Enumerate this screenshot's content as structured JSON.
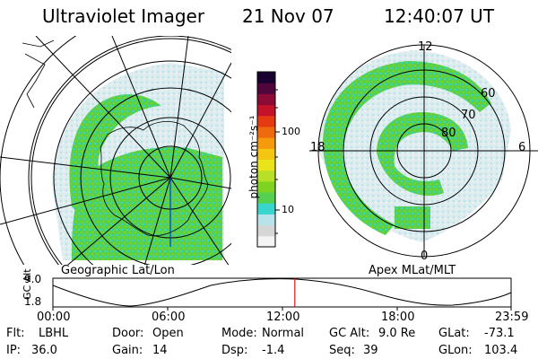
{
  "header": {
    "instrument": "Ultraviolet Imager",
    "date": "21 Nov 07",
    "time": "12:40:07 UT"
  },
  "colorbar": {
    "unit_label": "photon cm⁻²s⁻¹",
    "ticks": [
      "100",
      "10"
    ],
    "colors": [
      "#f4f4f4",
      "#d6d6d6",
      "#b9e3ea",
      "#39d6cf",
      "#55d050",
      "#7ed321",
      "#b8e028",
      "#e9e51a",
      "#f5c611",
      "#f49a0c",
      "#ef6a0e",
      "#e53a12",
      "#c4122a",
      "#8c0a36",
      "#50063a",
      "#1a0030"
    ]
  },
  "left_map": {
    "caption": "Geographic Lat/Lon"
  },
  "right_map": {
    "caption": "Apex MLat/MLT",
    "mlt_labels": {
      "top": "12",
      "left": "18",
      "right": "6",
      "bottom": "0"
    },
    "lat_labels": [
      "60",
      "70",
      "80"
    ]
  },
  "altitude_plot": {
    "y_label": "GC Alt",
    "y_ticks": [
      "9.0",
      "1.8"
    ],
    "x_ticks": [
      "00:00",
      "06:00",
      "12:00",
      "18:00",
      "23:59"
    ],
    "current_time_fraction": 0.528,
    "marker_color": "#d01818"
  },
  "status": {
    "flt_label": "Flt:",
    "flt_value": "LBHL",
    "ip_label": "IP:",
    "ip_value": "36.0",
    "door_label": "Door:",
    "door_value": "Open",
    "gain_label": "Gain:",
    "gain_value": "14",
    "mode_label": "Mode:",
    "mode_value": "Normal",
    "dsp_label": "Dsp:",
    "dsp_value": "-1.4",
    "gcalt_label": "GC Alt:",
    "gcalt_value": "9.0 Re",
    "seq_label": "Seq:",
    "seq_value": "39",
    "glat_label": "GLat:",
    "glat_value": "-73.1",
    "glon_label": "GLon:",
    "glon_value": "103.4"
  }
}
